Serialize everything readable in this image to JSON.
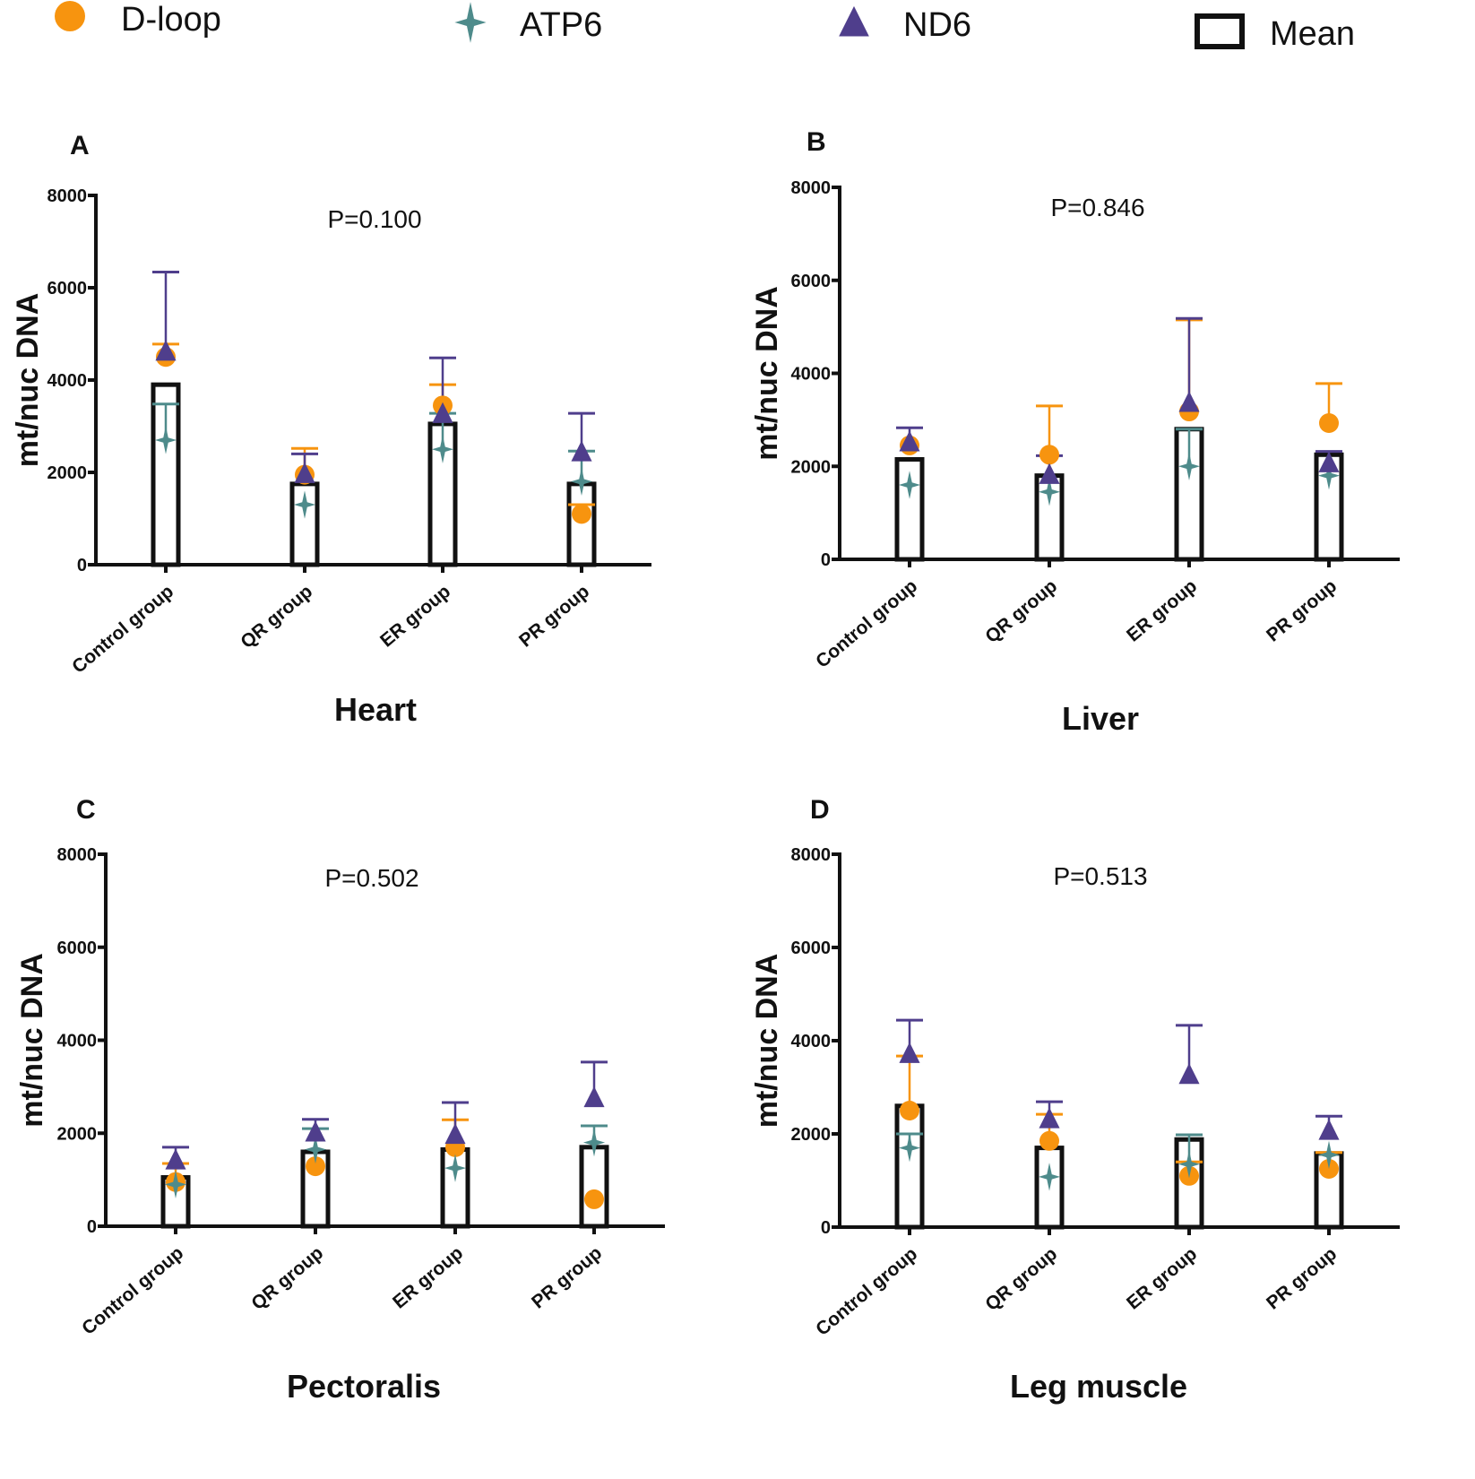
{
  "legend": [
    {
      "name": "D-loop",
      "marker": "circle",
      "color": "#F7940F"
    },
    {
      "name": "ATP6",
      "marker": "star",
      "color": "#4E8B8B"
    },
    {
      "name": "ND6",
      "marker": "triangle",
      "color": "#4F3E8C"
    },
    {
      "name": "Mean",
      "marker": "open-square",
      "color": "#111111"
    }
  ],
  "chart_data": [
    {
      "type": "bar",
      "panel": "A",
      "title": "Heart",
      "p_value": "P=0.100",
      "ylabel": "mt/nuc DNA",
      "ylim": [
        0,
        8000
      ],
      "yticks": [
        "0",
        "2000",
        "4000",
        "6000",
        "8000"
      ],
      "categories": [
        "Control group",
        "QR group",
        "ER group",
        "PR group"
      ],
      "mean": [
        3900,
        1750,
        3050,
        1750
      ],
      "series": [
        {
          "name": "D-loop",
          "values": [
            4500,
            1950,
            3450,
            1100
          ],
          "error_upper": [
            4780,
            2520,
            3900,
            1300
          ]
        },
        {
          "name": "ATP6",
          "values": [
            2700,
            1300,
            2500,
            1800
          ],
          "error_upper": [
            3480,
            1300,
            3280,
            2460
          ]
        },
        {
          "name": "ND6",
          "values": [
            4600,
            1950,
            3250,
            2420
          ],
          "error_upper": [
            6340,
            2400,
            4480,
            3280
          ]
        }
      ]
    },
    {
      "type": "bar",
      "panel": "B",
      "title": "Liver",
      "p_value": "P=0.846",
      "ylabel": "mt/nuc DNA",
      "ylim": [
        0,
        8000
      ],
      "yticks": [
        "0",
        "2000",
        "4000",
        "6000",
        "8000"
      ],
      "categories": [
        "Control group",
        "QR group",
        "ER group",
        "PR group"
      ],
      "mean": [
        2150,
        1800,
        2800,
        2250
      ],
      "series": [
        {
          "name": "D-loop",
          "values": [
            2450,
            2250,
            3180,
            2930
          ],
          "error_upper": [
            2450,
            3300,
            5150,
            3780
          ]
        },
        {
          "name": "ATP6",
          "values": [
            1600,
            1450,
            2000,
            1800
          ],
          "error_upper": [
            1600,
            1450,
            2800,
            1800
          ]
        },
        {
          "name": "ND6",
          "values": [
            2500,
            1800,
            3350,
            2050
          ],
          "error_upper": [
            2830,
            2230,
            5180,
            2320
          ]
        }
      ]
    },
    {
      "type": "bar",
      "panel": "C",
      "title": "Pectoralis",
      "p_value": "P=0.502",
      "ylabel": "mt/nuc DNA",
      "ylim": [
        0,
        8000
      ],
      "yticks": [
        "0",
        "2000",
        "4000",
        "6000",
        "8000"
      ],
      "categories": [
        "Control group",
        "QR group",
        "ER group",
        "PR group"
      ],
      "mean": [
        1050,
        1600,
        1650,
        1700
      ],
      "series": [
        {
          "name": "D-loop",
          "values": [
            950,
            1290,
            1700,
            580
          ],
          "error_upper": [
            1350,
            1290,
            2290,
            580
          ]
        },
        {
          "name": "ATP6",
          "values": [
            900,
            1650,
            1250,
            1800
          ],
          "error_upper": [
            900,
            2100,
            1250,
            2160
          ]
        },
        {
          "name": "ND6",
          "values": [
            1400,
            2000,
            1950,
            2740
          ],
          "error_upper": [
            1700,
            2300,
            2660,
            3530
          ]
        }
      ]
    },
    {
      "type": "bar",
      "panel": "D",
      "title": "Leg muscle",
      "p_value": "P=0.513",
      "ylabel": "mt/nuc DNA",
      "ylim": [
        0,
        8000
      ],
      "yticks": [
        "0",
        "2000",
        "4000",
        "6000",
        "8000"
      ],
      "categories": [
        "Control group",
        "QR group",
        "ER group",
        "PR group"
      ],
      "mean": [
        2600,
        1700,
        1880,
        1580
      ],
      "series": [
        {
          "name": "D-loop",
          "values": [
            2500,
            1850,
            1100,
            1250
          ],
          "error_upper": [
            3670,
            2420,
            1400,
            1600
          ]
        },
        {
          "name": "ATP6",
          "values": [
            1700,
            1080,
            1350,
            1550
          ],
          "error_upper": [
            2000,
            1080,
            1980,
            1550
          ]
        },
        {
          "name": "ND6",
          "values": [
            3700,
            2300,
            3250,
            2050
          ],
          "error_upper": [
            4440,
            2690,
            4330,
            2380
          ]
        }
      ]
    }
  ]
}
